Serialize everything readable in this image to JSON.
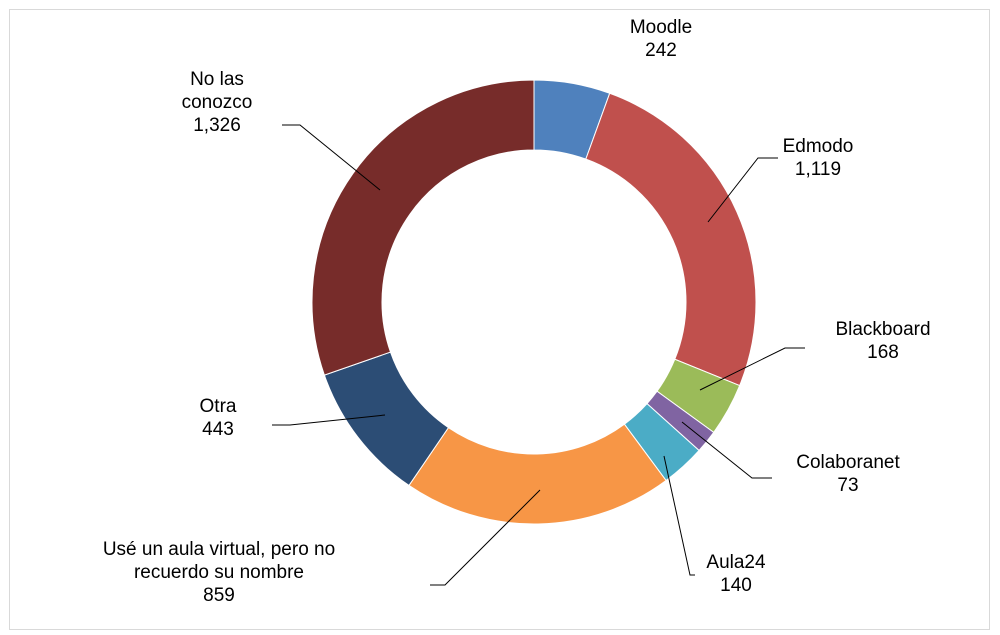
{
  "chart_data": {
    "type": "donut",
    "categories": [
      "Moodle",
      "Edmodo",
      "Blackboard",
      "Colaboranet",
      "Aula24",
      "Usé un aula virtual, pero no recuerdo su nombre",
      "Otra",
      "No las conozco"
    ],
    "values": [
      242,
      1119,
      168,
      73,
      140,
      859,
      443,
      1326
    ],
    "value_labels": [
      "242",
      "1,119",
      "168",
      "73",
      "140",
      "859",
      "443",
      "1,326"
    ],
    "colors": [
      "#4f81bd",
      "#c0504d",
      "#9bbb59",
      "#8064a2",
      "#4bacc6",
      "#f79646",
      "#2c4d75",
      "#772c2a"
    ]
  }
}
